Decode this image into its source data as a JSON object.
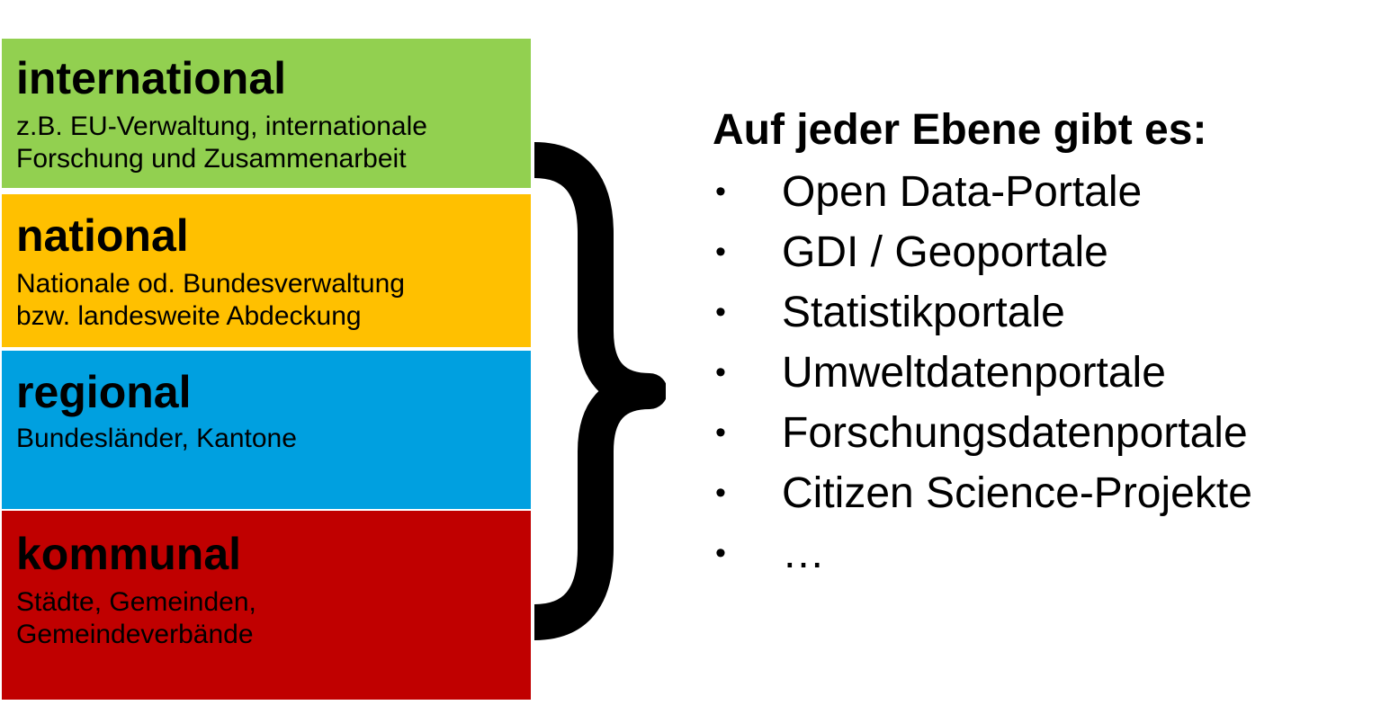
{
  "colors": {
    "international": "#92D050",
    "national": "#FFC000",
    "regional": "#00A0E0",
    "kommunal": "#C00000",
    "brace": "#000000"
  },
  "levels": [
    {
      "title": "international",
      "description": "z.B. EU-Verwaltung, internationale\nForschung und Zusammenarbeit"
    },
    {
      "title": "national",
      "description": "Nationale od. Bundesverwaltung\nbzw. landesweite Abdeckung"
    },
    {
      "title": "regional",
      "description": "Bundesländer, Kantone"
    },
    {
      "title": "kommunal",
      "description": "Städte, Gemeinden,\nGemeindeverbände"
    }
  ],
  "brace_icon": "right-curly-brace-icon",
  "portals": {
    "heading": "Auf jeder Ebene gibt es:",
    "bullet": "•",
    "items": [
      "Open Data-Portale",
      "GDI / Geoportale",
      "Statistikportale",
      "Umweltdatenportale",
      "Forschungsdatenportale",
      "Citizen Science-Projekte",
      "…"
    ]
  }
}
